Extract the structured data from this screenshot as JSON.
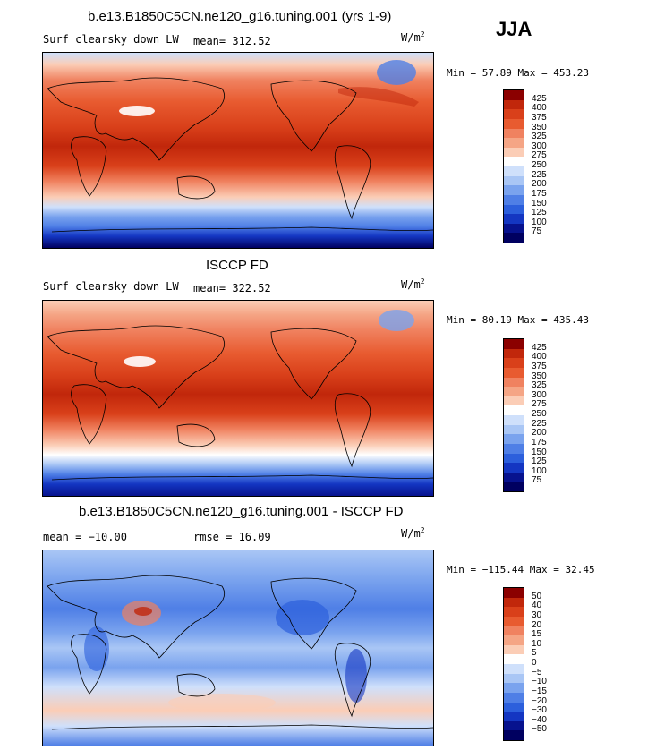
{
  "season": "JJA",
  "panels": [
    {
      "title": "b.e13.B1850C5CN.ne120_g16.tuning.001 (yrs 1-9)",
      "left_label": "Surf clearsky down LW",
      "stat_label": "mean= 312.52",
      "units_base": "W/m",
      "units_exp": "2",
      "minmax": "Min =  57.89 Max = 453.23",
      "colorbar": {
        "levels": [
          "425",
          "400",
          "375",
          "350",
          "325",
          "300",
          "275",
          "250",
          "225",
          "200",
          "175",
          "150",
          "125",
          "100",
          "75"
        ],
        "colors": [
          "#8b0000",
          "#c1270b",
          "#d9401a",
          "#e85b30",
          "#f08260",
          "#f5a585",
          "#fbcdb6",
          "#ffffff",
          "#cfe0fb",
          "#a9c6f5",
          "#7aa3ee",
          "#4f7fe6",
          "#2c5fdc",
          "#1436c2",
          "#07128e",
          "#000060"
        ]
      }
    },
    {
      "title": "ISCCP FD",
      "left_label": "Surf clearsky down LW",
      "stat_label": "mean= 322.52",
      "units_base": "W/m",
      "units_exp": "2",
      "minmax": "Min =  80.19 Max = 435.43",
      "colorbar": {
        "levels": [
          "425",
          "400",
          "375",
          "350",
          "325",
          "300",
          "275",
          "250",
          "225",
          "200",
          "175",
          "150",
          "125",
          "100",
          "75"
        ],
        "colors": [
          "#8b0000",
          "#c1270b",
          "#d9401a",
          "#e85b30",
          "#f08260",
          "#f5a585",
          "#fbcdb6",
          "#ffffff",
          "#cfe0fb",
          "#a9c6f5",
          "#7aa3ee",
          "#4f7fe6",
          "#2c5fdc",
          "#1436c2",
          "#07128e",
          "#000060"
        ]
      }
    },
    {
      "title": "b.e13.B1850C5CN.ne120_g16.tuning.001 - ISCCP FD",
      "left_label": "mean = −10.00",
      "stat_label": "rmse =  16.09",
      "units_base": "W/m",
      "units_exp": "2",
      "minmax": "Min = −115.44 Max =  32.45",
      "colorbar": {
        "levels": [
          "50",
          "40",
          "30",
          "20",
          "15",
          "10",
          "5",
          "0",
          "−5",
          "−10",
          "−15",
          "−20",
          "−30",
          "−40",
          "−50"
        ],
        "colors": [
          "#8b0000",
          "#c1270b",
          "#d9401a",
          "#e85b30",
          "#f08260",
          "#f5a585",
          "#fbcdb6",
          "#ffffff",
          "#cfe0fb",
          "#a9c6f5",
          "#7aa3ee",
          "#4f7fe6",
          "#2c5fdc",
          "#1436c2",
          "#07128e",
          "#000060"
        ]
      }
    }
  ]
}
